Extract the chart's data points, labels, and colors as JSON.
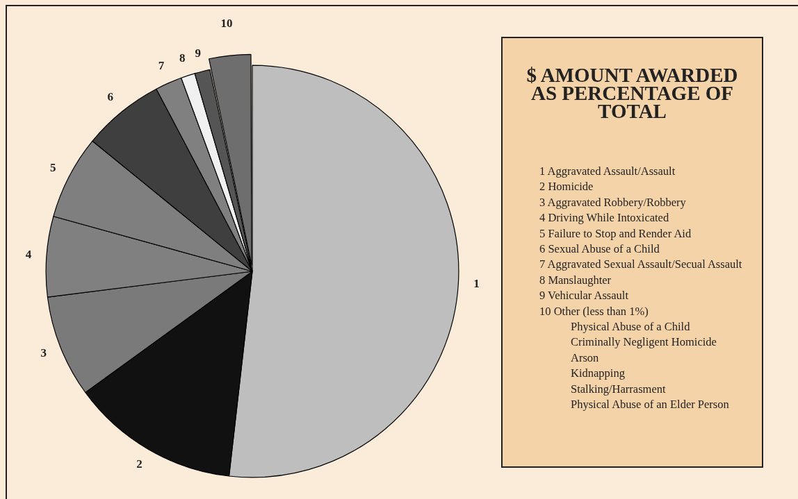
{
  "chart_data": {
    "type": "pie",
    "title": "$ AMOUNT AWARDED AS PERCENTAGE OF TOTAL",
    "categories": [
      "1",
      "2",
      "3",
      "4",
      "5",
      "6",
      "7",
      "8",
      "9",
      "10"
    ],
    "values": [
      51.8,
      13.2,
      8.0,
      6.3,
      6.6,
      6.4,
      2.1,
      1.1,
      1.2,
      3.3
    ],
    "colors": [
      "#bebebe",
      "#111111",
      "#7a7a7a",
      "#808080",
      "#7f7f7f",
      "#3f3f3f",
      "#808080",
      "#f0f0f0",
      "#555555",
      "#6e6e6e"
    ],
    "legend": false,
    "annotations": [
      "1 Aggravated Assault/Assault",
      "2 Homicide",
      "3 Aggravated Robbery/Robbery",
      "4 Driving While Intoxicated",
      "5 Failure to Stop and Render Aid",
      "6 Sexual Abuse of a Child",
      "7 Aggravated Sexual Assault/Secual Assault",
      "8 Manslaughter",
      "9 Vehicular Assault",
      "10 Other (less than 1%)",
      "Physical Abuse of a Child",
      "Criminally Negligent Homicide",
      "Arson",
      "Kidnapping",
      "Stalking/Harrasment",
      "Physical Abuse of an Elder Person"
    ]
  }
}
